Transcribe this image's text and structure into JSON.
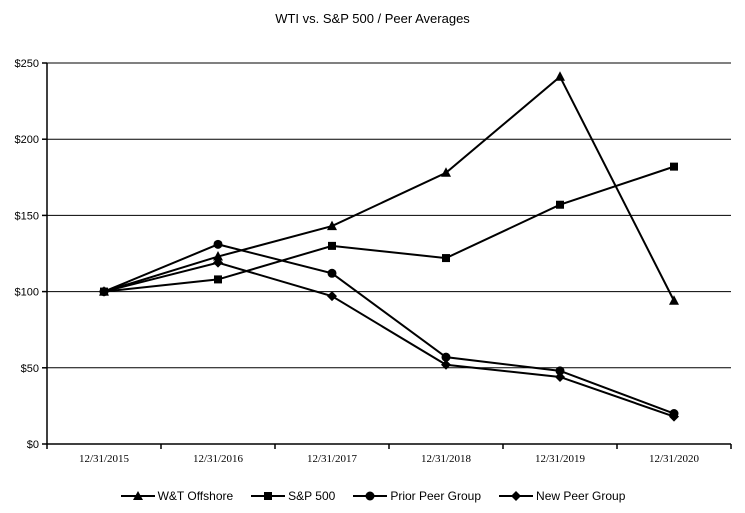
{
  "chart_data": {
    "type": "line",
    "title": "WTI vs. S&P 500 / Peer Averages",
    "x": [
      "12/31/2015",
      "12/31/2016",
      "12/31/2017",
      "12/31/2018",
      "12/31/2019",
      "12/31/2020"
    ],
    "series": [
      {
        "name": "W&T Offshore",
        "marker": "triangle",
        "values": [
          100,
          123,
          143,
          178,
          241,
          94
        ]
      },
      {
        "name": "S&P 500",
        "marker": "square",
        "values": [
          100,
          108,
          130,
          122,
          157,
          182
        ]
      },
      {
        "name": "Prior Peer Group",
        "marker": "circle",
        "values": [
          100,
          131,
          112,
          57,
          48,
          20
        ]
      },
      {
        "name": "New Peer Group",
        "marker": "diamond",
        "values": [
          100,
          119,
          97,
          52,
          44,
          18
        ]
      }
    ],
    "ylim": [
      0,
      250
    ],
    "ytick_step": 50,
    "ytick_labels": [
      "$0",
      "$50",
      "$100",
      "$150",
      "$200",
      "$250"
    ],
    "grid": true,
    "legend_position": "bottom",
    "line_color": "#000000",
    "background_color": "#ffffff"
  }
}
